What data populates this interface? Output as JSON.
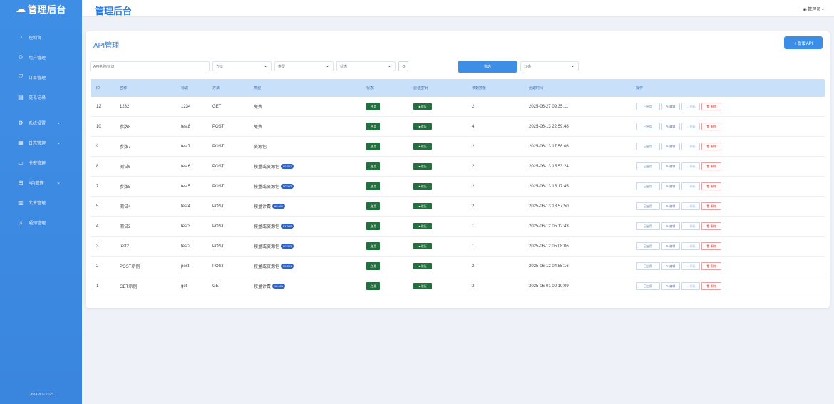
{
  "brand": {
    "name": "管理后台"
  },
  "sidebar": {
    "items": [
      {
        "label": "控制台",
        "icon": "dashboard-icon"
      },
      {
        "label": "用户管理",
        "icon": "users-icon"
      },
      {
        "label": "订单管理",
        "icon": "cart-icon"
      },
      {
        "label": "交易记录",
        "icon": "receipt-icon"
      },
      {
        "label": "系统设置",
        "icon": "gear-icon",
        "expandable": true
      },
      {
        "label": "日志管理",
        "icon": "log-icon",
        "expandable": true
      },
      {
        "label": "卡密管理",
        "icon": "card-icon"
      },
      {
        "label": "API管理",
        "icon": "api-icon",
        "expandable": true
      },
      {
        "label": "文章管理",
        "icon": "article-icon"
      },
      {
        "label": "通知管理",
        "icon": "bell-icon"
      }
    ],
    "copyright": "OneAPI © 2025"
  },
  "header": {
    "title": "管理后台",
    "user": "管理员"
  },
  "page": {
    "title": "API管理",
    "add_button": "+ 新增API"
  },
  "filters": {
    "search_placeholder": "API名称/标识",
    "method_label": "方法",
    "type_label": "类型",
    "status_label": "状态",
    "reset_symbol": "⟲",
    "search_button": "筛选",
    "page_size": "10条"
  },
  "table": {
    "columns": [
      "ID",
      "名称",
      "标识",
      "方法",
      "类型",
      "状态",
      "验证密钥",
      "参数数量",
      "创建时间",
      "操作"
    ],
    "rows": [
      {
        "id": "12",
        "name": "1232",
        "ident": "1234",
        "method": "GET",
        "type": "免费",
        "price": "",
        "status": "启用",
        "auth": "● 验证",
        "params": "2",
        "created": "2025-06-27 09:35:11"
      },
      {
        "id": "10",
        "name": "参数8",
        "ident": "test8",
        "method": "POST",
        "type": "免费",
        "price": "",
        "status": "启用",
        "auth": "● 验证",
        "params": "4",
        "created": "2025-06-13 22:59:48"
      },
      {
        "id": "9",
        "name": "参数7",
        "ident": "test7",
        "method": "POST",
        "type": "资源包",
        "price": "",
        "status": "启用",
        "auth": "● 验证",
        "params": "2",
        "created": "2025-06-13 17:58:06"
      },
      {
        "id": "8",
        "name": "测试6",
        "ident": "test6",
        "method": "POST",
        "type": "按量或资源包",
        "price": "¥0.001",
        "status": "启用",
        "auth": "● 验证",
        "params": "2",
        "created": "2025-06-13 15:53:24"
      },
      {
        "id": "7",
        "name": "参数5",
        "ident": "test5",
        "method": "POST",
        "type": "按量或资源包",
        "price": "¥0.002",
        "status": "启用",
        "auth": "● 验证",
        "params": "2",
        "created": "2025-06-13 15:17:45"
      },
      {
        "id": "5",
        "name": "测试4",
        "ident": "test4",
        "method": "POST",
        "type": "按量计费",
        "price": "¥0.001",
        "status": "启用",
        "auth": "● 验证",
        "params": "2",
        "created": "2025-06-13 13:57:50"
      },
      {
        "id": "4",
        "name": "测试3",
        "ident": "test3",
        "method": "POST",
        "type": "按量或资源包",
        "price": "¥1.000",
        "status": "启用",
        "auth": "● 验证",
        "params": "1",
        "created": "2025-06-12 05:12:43"
      },
      {
        "id": "3",
        "name": "test2",
        "ident": "test2",
        "method": "POST",
        "type": "按量或资源包",
        "price": "¥0.002",
        "status": "启用",
        "auth": "● 验证",
        "params": "1",
        "created": "2025-06-12 05:08:06"
      },
      {
        "id": "2",
        "name": "POST示例",
        "ident": "post",
        "method": "POST",
        "type": "按量或资源包",
        "price": "¥0.001",
        "status": "启用",
        "auth": "● 验证",
        "params": "2",
        "created": "2025-06-12 04:55:16"
      },
      {
        "id": "1",
        "name": "GET示例",
        "ident": "get",
        "method": "GET",
        "type": "按量计费",
        "price": "¥0.001",
        "status": "启用",
        "auth": "● 验证",
        "params": "2",
        "created": "2025-06-01 00:10:09"
      }
    ],
    "actions": [
      "已启用",
      "✎ 编辑",
      "↔ 代码",
      "🗑 删除"
    ]
  },
  "colors": {
    "accent": "#3f8ee6",
    "status_green": "#236f3e",
    "price_blue": "#2f63c6",
    "danger": "#d23b3b"
  }
}
